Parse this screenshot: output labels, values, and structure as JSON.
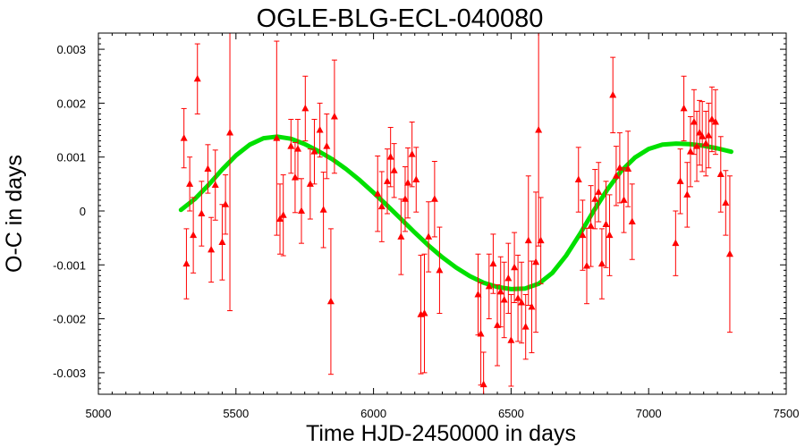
{
  "chart_data": {
    "type": "scatter",
    "title": "OGLE-BLG-ECL-040080",
    "xlabel": "Time HJD-2450000 in days",
    "ylabel": "O-C in days",
    "xlim": [
      5000,
      7500
    ],
    "ylim": [
      -0.0034,
      0.0033
    ],
    "xticks": [
      5000,
      5500,
      6000,
      6500,
      7000,
      7500
    ],
    "xtick_labels": [
      "5000",
      "5500",
      "6000",
      "6500",
      "7000",
      "7500"
    ],
    "yticks": [
      -0.003,
      -0.002,
      -0.001,
      0,
      0.001,
      0.002,
      0.003
    ],
    "ytick_labels": [
      "-0.003",
      "-0.002",
      "-0.001",
      "0",
      "0.001",
      "0.002",
      "0.003"
    ],
    "grid": false,
    "colors": {
      "points": "#ff0000",
      "fit": "#00e000",
      "frame": "#000000"
    },
    "series": [
      {
        "kind": "observations-with-error-bars",
        "marker": "triangle",
        "points": [
          {
            "x": 5311,
            "y": 0.00135,
            "err": 0.00055
          },
          {
            "x": 5320,
            "y": -0.00098,
            "err": 0.00065
          },
          {
            "x": 5332,
            "y": 0.0005,
            "err": 0.0005
          },
          {
            "x": 5345,
            "y": -0.00045,
            "err": 0.0007
          },
          {
            "x": 5360,
            "y": 0.00245,
            "err": 0.00065
          },
          {
            "x": 5375,
            "y": -5e-05,
            "err": 0.0006
          },
          {
            "x": 5398,
            "y": 0.00078,
            "err": 0.00045
          },
          {
            "x": 5410,
            "y": -0.00072,
            "err": 0.0006
          },
          {
            "x": 5425,
            "y": 0.00048,
            "err": 0.00065
          },
          {
            "x": 5450,
            "y": -0.00058,
            "err": 0.0007
          },
          {
            "x": 5462,
            "y": 0.00012,
            "err": 0.00055
          },
          {
            "x": 5478,
            "y": 0.00145,
            "err": 0.0033
          },
          {
            "x": 5648,
            "y": 0.00135,
            "err": 0.0018
          },
          {
            "x": 5660,
            "y": -0.00015,
            "err": 0.00065
          },
          {
            "x": 5672,
            "y": -8e-05,
            "err": 0.00075
          },
          {
            "x": 5700,
            "y": 0.0012,
            "err": 0.0005
          },
          {
            "x": 5715,
            "y": 0.00062,
            "err": 0.00065
          },
          {
            "x": 5725,
            "y": 0.00115,
            "err": 0.00055
          },
          {
            "x": 5738,
            "y": 0.0,
            "err": 0.0006
          },
          {
            "x": 5752,
            "y": 0.0019,
            "err": 0.0006
          },
          {
            "x": 5770,
            "y": 0.0005,
            "err": 0.00065
          },
          {
            "x": 5785,
            "y": 0.0011,
            "err": 0.0006
          },
          {
            "x": 5805,
            "y": 0.0015,
            "err": 0.0005
          },
          {
            "x": 5818,
            "y": 2e-05,
            "err": 0.0007
          },
          {
            "x": 5830,
            "y": 0.0012,
            "err": 0.0006
          },
          {
            "x": 5845,
            "y": -0.00168,
            "err": 0.00135
          },
          {
            "x": 5858,
            "y": 0.00175,
            "err": 0.00105
          },
          {
            "x": 6015,
            "y": 0.00032,
            "err": 0.0007
          },
          {
            "x": 6030,
            "y": 8e-05,
            "err": 0.00065
          },
          {
            "x": 6050,
            "y": 0.00055,
            "err": 0.0006
          },
          {
            "x": 6062,
            "y": 0.001,
            "err": 0.00055
          },
          {
            "x": 6075,
            "y": 0.00075,
            "err": 0.0005
          },
          {
            "x": 6100,
            "y": -0.00048,
            "err": 0.0007
          },
          {
            "x": 6115,
            "y": 0.00022,
            "err": 0.0006
          },
          {
            "x": 6125,
            "y": 0.00052,
            "err": 0.00065
          },
          {
            "x": 6140,
            "y": 0.00105,
            "err": 0.0006
          },
          {
            "x": 6155,
            "y": 0.00058,
            "err": 0.0006
          },
          {
            "x": 6172,
            "y": -0.00192,
            "err": 0.0011
          },
          {
            "x": 6185,
            "y": -0.0019,
            "err": 0.0011
          },
          {
            "x": 6200,
            "y": -0.00048,
            "err": 0.00065
          },
          {
            "x": 6222,
            "y": 0.00022,
            "err": 0.0007
          },
          {
            "x": 6240,
            "y": -0.0011,
            "err": 0.0008
          },
          {
            "x": 6380,
            "y": -0.00155,
            "err": 0.00075
          },
          {
            "x": 6390,
            "y": -0.00228,
            "err": 0.00095
          },
          {
            "x": 6400,
            "y": -0.00322,
            "err": 0.0006
          },
          {
            "x": 6420,
            "y": -0.0014,
            "err": 0.0006
          },
          {
            "x": 6435,
            "y": -0.00098,
            "err": 0.00055
          },
          {
            "x": 6450,
            "y": -0.00212,
            "err": 0.00075
          },
          {
            "x": 6462,
            "y": -0.0015,
            "err": 0.00065
          },
          {
            "x": 6475,
            "y": -0.00165,
            "err": 0.0007
          },
          {
            "x": 6490,
            "y": -0.00125,
            "err": 0.00065
          },
          {
            "x": 6500,
            "y": -0.0024,
            "err": 0.00085
          },
          {
            "x": 6512,
            "y": -0.00105,
            "err": 0.00065
          },
          {
            "x": 6525,
            "y": -0.00162,
            "err": 0.0008
          },
          {
            "x": 6538,
            "y": -0.0017,
            "err": 0.00075
          },
          {
            "x": 6553,
            "y": -0.00215,
            "err": 0.0006
          },
          {
            "x": 6563,
            "y": -0.00055,
            "err": 0.0012
          },
          {
            "x": 6575,
            "y": -0.00178,
            "err": 0.00085
          },
          {
            "x": 6590,
            "y": -0.00095,
            "err": 0.0013
          },
          {
            "x": 6600,
            "y": 0.0015,
            "err": 0.00215
          },
          {
            "x": 6608,
            "y": -0.00055,
            "err": 0.0008
          },
          {
            "x": 6745,
            "y": 0.00058,
            "err": 0.0006
          },
          {
            "x": 6760,
            "y": -0.00045,
            "err": 0.00065
          },
          {
            "x": 6775,
            "y": -0.00102,
            "err": 0.0007
          },
          {
            "x": 6790,
            "y": -0.00028,
            "err": 0.00075
          },
          {
            "x": 6805,
            "y": 0.00022,
            "err": 0.00055
          },
          {
            "x": 6818,
            "y": 0.00035,
            "err": 0.00055
          },
          {
            "x": 6830,
            "y": -0.00098,
            "err": 0.00065
          },
          {
            "x": 6845,
            "y": -0.00025,
            "err": 0.0008
          },
          {
            "x": 6858,
            "y": -0.00045,
            "err": 0.00075
          },
          {
            "x": 6870,
            "y": 0.00215,
            "err": 0.0007
          },
          {
            "x": 6882,
            "y": 0.00065,
            "err": 0.00055
          },
          {
            "x": 6895,
            "y": 0.0008,
            "err": 0.00065
          },
          {
            "x": 6910,
            "y": 0.0002,
            "err": 0.0006
          },
          {
            "x": 6925,
            "y": 0.00078,
            "err": 0.0007
          },
          {
            "x": 6940,
            "y": -0.0002,
            "err": 0.0007
          },
          {
            "x": 7098,
            "y": -0.0006,
            "err": 0.0006
          },
          {
            "x": 7115,
            "y": 0.00055,
            "err": 0.0006
          },
          {
            "x": 7128,
            "y": 0.0019,
            "err": 0.0006
          },
          {
            "x": 7140,
            "y": 0.0003,
            "err": 0.0006
          },
          {
            "x": 7152,
            "y": 0.0011,
            "err": 0.00065
          },
          {
            "x": 7165,
            "y": 0.00165,
            "err": 0.0006
          },
          {
            "x": 7175,
            "y": 0.0012,
            "err": 0.00065
          },
          {
            "x": 7185,
            "y": 0.00145,
            "err": 0.0006
          },
          {
            "x": 7195,
            "y": 0.00138,
            "err": 0.00065
          },
          {
            "x": 7208,
            "y": 0.00125,
            "err": 0.0006
          },
          {
            "x": 7218,
            "y": 0.0014,
            "err": 0.0006
          },
          {
            "x": 7230,
            "y": 0.0017,
            "err": 0.0006
          },
          {
            "x": 7243,
            "y": 0.00165,
            "err": 0.0006
          },
          {
            "x": 7262,
            "y": 0.00068,
            "err": 0.0007
          },
          {
            "x": 7280,
            "y": 0.00015,
            "err": 0.0006
          },
          {
            "x": 7295,
            "y": -0.0008,
            "err": 0.00145
          }
        ]
      },
      {
        "kind": "fit-curve",
        "x": [
          5300,
          5350,
          5400,
          5450,
          5500,
          5550,
          5600,
          5650,
          5700,
          5750,
          5800,
          5850,
          5900,
          5950,
          6000,
          6050,
          6100,
          6150,
          6200,
          6250,
          6300,
          6350,
          6400,
          6450,
          6500,
          6550,
          6600,
          6650,
          6700,
          6750,
          6800,
          6850,
          6900,
          6950,
          7000,
          7050,
          7100,
          7150,
          7200,
          7250,
          7300
        ],
        "y": [
          2e-05,
          0.00022,
          0.00048,
          0.00077,
          0.00103,
          0.00123,
          0.00135,
          0.00138,
          0.00134,
          0.00124,
          0.00111,
          0.00096,
          0.00078,
          0.00057,
          0.00034,
          0.0001,
          -0.00015,
          -0.0004,
          -0.00064,
          -0.00086,
          -0.00105,
          -0.00121,
          -0.00133,
          -0.00141,
          -0.00145,
          -0.00144,
          -0.00135,
          -0.00115,
          -0.00083,
          -0.00043,
          0.0,
          0.0004,
          0.00074,
          0.00099,
          0.00115,
          0.00123,
          0.00125,
          0.00124,
          0.00121,
          0.00116,
          0.0011
        ]
      }
    ]
  }
}
